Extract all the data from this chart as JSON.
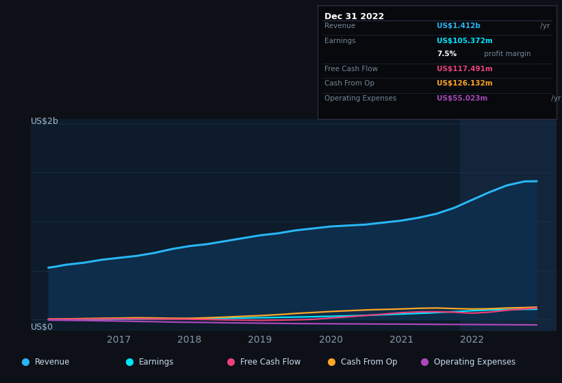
{
  "bg_color": "#0d1117",
  "plot_bg_color": "#0d1b2a",
  "grid_color": "#1a2d45",
  "shaded_bg": "#12253a",
  "title_date": "Dec 31 2022",
  "box_bg": "#07090d",
  "ylabel": "US$2b",
  "y0label": "US$0",
  "ylim": [
    -0.12,
    2.05
  ],
  "xlim": [
    2015.75,
    2023.2
  ],
  "shaded_x_start": 2021.83,
  "x_ticks": [
    2017,
    2018,
    2019,
    2020,
    2021,
    2022
  ],
  "revenue_color": "#29b6f6",
  "revenue_fill": "#0d2d4a",
  "earnings_color": "#00e5ff",
  "free_cash_flow_color": "#ec407a",
  "cash_from_op_color": "#ffa726",
  "op_expenses_color": "#ab47bc",
  "legend": [
    {
      "label": "Revenue",
      "color": "#29b6f6"
    },
    {
      "label": "Earnings",
      "color": "#00e5ff"
    },
    {
      "label": "Free Cash Flow",
      "color": "#ec407a"
    },
    {
      "label": "Cash From Op",
      "color": "#ffa726"
    },
    {
      "label": "Operating Expenses",
      "color": "#ab47bc"
    }
  ],
  "box_rows": [
    {
      "label": "Revenue",
      "value": "US$1.412b",
      "value_color": "#29b6f6",
      "suffix": " /yr",
      "bold_val": true
    },
    {
      "label": "Earnings",
      "value": "US$105.372m",
      "value_color": "#00e5ff",
      "suffix": " /yr",
      "bold_val": true
    },
    {
      "label": "",
      "value": "7.5%",
      "value_color": "#ffffff",
      "suffix": " profit margin",
      "bold_val": true
    },
    {
      "label": "Free Cash Flow",
      "value": "US$117.491m",
      "value_color": "#ec407a",
      "suffix": " /yr",
      "bold_val": true
    },
    {
      "label": "Cash From Op",
      "value": "US$126.132m",
      "value_color": "#ffa726",
      "suffix": " /yr",
      "bold_val": true
    },
    {
      "label": "Operating Expenses",
      "value": "US$55.023m",
      "value_color": "#ab47bc",
      "suffix": " /yr",
      "bold_val": true
    }
  ],
  "revenue_x": [
    2016.0,
    2016.1,
    2016.25,
    2016.5,
    2016.75,
    2017.0,
    2017.25,
    2017.5,
    2017.75,
    2018.0,
    2018.25,
    2018.5,
    2018.75,
    2019.0,
    2019.25,
    2019.5,
    2019.75,
    2020.0,
    2020.25,
    2020.5,
    2020.75,
    2021.0,
    2021.25,
    2021.5,
    2021.75,
    2022.0,
    2022.25,
    2022.5,
    2022.75,
    2022.92
  ],
  "revenue_y": [
    0.53,
    0.54,
    0.56,
    0.58,
    0.61,
    0.63,
    0.65,
    0.68,
    0.72,
    0.75,
    0.77,
    0.8,
    0.83,
    0.86,
    0.88,
    0.91,
    0.93,
    0.95,
    0.96,
    0.97,
    0.99,
    1.01,
    1.04,
    1.08,
    1.14,
    1.22,
    1.3,
    1.37,
    1.41,
    1.412
  ],
  "earnings_x": [
    2016.0,
    2016.25,
    2016.5,
    2016.75,
    2017.0,
    2017.25,
    2017.5,
    2017.75,
    2018.0,
    2018.25,
    2018.5,
    2018.75,
    2019.0,
    2019.25,
    2019.5,
    2019.75,
    2020.0,
    2020.25,
    2020.5,
    2020.75,
    2021.0,
    2021.25,
    2021.5,
    2021.75,
    2022.0,
    2022.25,
    2022.5,
    2022.75,
    2022.92
  ],
  "earnings_y": [
    0.0,
    0.001,
    0.002,
    0.003,
    0.004,
    0.005,
    0.006,
    0.007,
    0.009,
    0.011,
    0.013,
    0.016,
    0.019,
    0.022,
    0.025,
    0.029,
    0.033,
    0.038,
    0.043,
    0.049,
    0.056,
    0.063,
    0.071,
    0.08,
    0.09,
    0.098,
    0.102,
    0.104,
    0.1054
  ],
  "fcf_x": [
    2016.0,
    2016.25,
    2016.5,
    2016.75,
    2017.0,
    2017.25,
    2017.5,
    2017.75,
    2018.0,
    2018.25,
    2018.5,
    2018.75,
    2019.0,
    2019.25,
    2019.5,
    2019.75,
    2020.0,
    2020.25,
    2020.5,
    2020.75,
    2021.0,
    2021.25,
    2021.5,
    2021.75,
    2022.0,
    2022.25,
    2022.5,
    2022.75,
    2022.92
  ],
  "fcf_y": [
    0.003,
    0.004,
    0.005,
    0.006,
    0.007,
    0.007,
    0.006,
    0.005,
    0.003,
    0.001,
    -0.003,
    -0.006,
    -0.008,
    -0.006,
    -0.003,
    0.002,
    0.015,
    0.028,
    0.042,
    0.055,
    0.07,
    0.078,
    0.08,
    0.075,
    0.065,
    0.075,
    0.095,
    0.108,
    0.1175
  ],
  "cfop_x": [
    2016.0,
    2016.25,
    2016.5,
    2016.75,
    2017.0,
    2017.25,
    2017.5,
    2017.75,
    2018.0,
    2018.25,
    2018.5,
    2018.75,
    2019.0,
    2019.25,
    2019.5,
    2019.75,
    2020.0,
    2020.25,
    2020.5,
    2020.75,
    2021.0,
    2021.25,
    2021.5,
    2021.75,
    2022.0,
    2022.25,
    2022.5,
    2022.75,
    2022.92
  ],
  "cfop_y": [
    0.005,
    0.007,
    0.01,
    0.013,
    0.015,
    0.018,
    0.016,
    0.013,
    0.012,
    0.018,
    0.025,
    0.033,
    0.04,
    0.05,
    0.062,
    0.072,
    0.082,
    0.09,
    0.098,
    0.103,
    0.108,
    0.115,
    0.118,
    0.112,
    0.108,
    0.11,
    0.118,
    0.122,
    0.1261
  ],
  "opex_x": [
    2016.0,
    2016.25,
    2016.5,
    2016.75,
    2017.0,
    2017.25,
    2017.5,
    2017.75,
    2018.0,
    2018.25,
    2018.5,
    2018.75,
    2019.0,
    2019.25,
    2019.5,
    2019.75,
    2020.0,
    2020.25,
    2020.5,
    2020.75,
    2021.0,
    2021.25,
    2021.5,
    2021.75,
    2022.0,
    2022.25,
    2022.5,
    2022.75,
    2022.92
  ],
  "opex_y": [
    -0.006,
    -0.008,
    -0.01,
    -0.013,
    -0.016,
    -0.019,
    -0.022,
    -0.026,
    -0.028,
    -0.03,
    -0.033,
    -0.035,
    -0.037,
    -0.039,
    -0.041,
    -0.042,
    -0.043,
    -0.044,
    -0.045,
    -0.046,
    -0.047,
    -0.048,
    -0.049,
    -0.05,
    -0.051,
    -0.052,
    -0.053,
    -0.054,
    -0.055
  ]
}
